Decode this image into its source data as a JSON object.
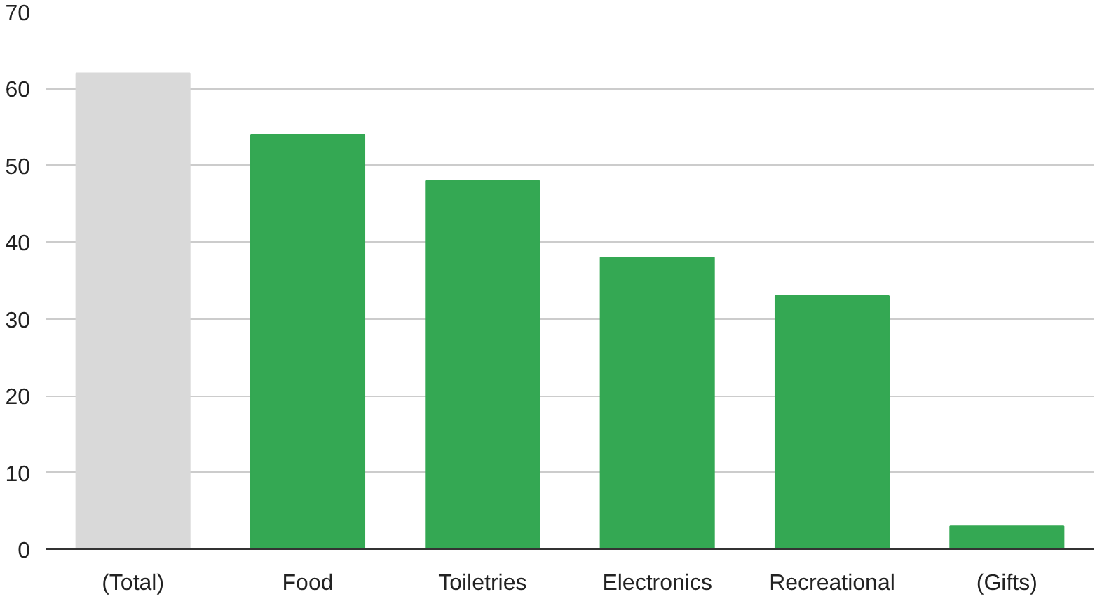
{
  "chart_data": {
    "type": "bar",
    "categories": [
      "(Total)",
      "Food",
      "Toiletries",
      "Electronics",
      "Recreational",
      "(Gifts)"
    ],
    "values": [
      62,
      54,
      48,
      38,
      33,
      3
    ],
    "colors": [
      "#d9d9d9",
      "#34a853",
      "#34a853",
      "#34a853",
      "#34a853",
      "#34a853"
    ],
    "ylim": [
      0,
      70
    ],
    "yticks": [
      0,
      10,
      20,
      30,
      40,
      50,
      60,
      70
    ],
    "grid": "y"
  }
}
